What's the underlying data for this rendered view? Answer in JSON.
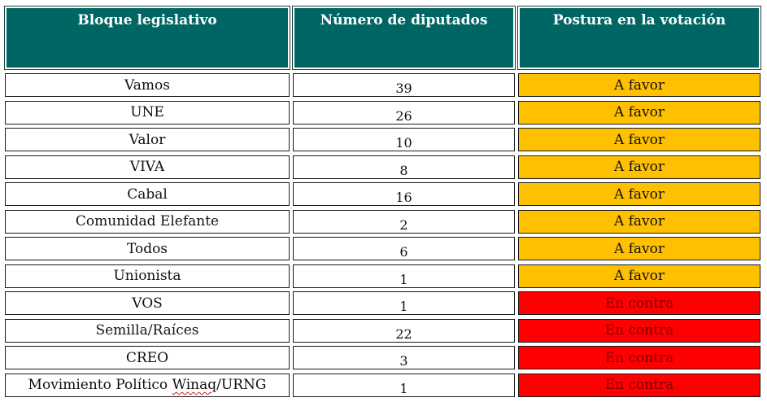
{
  "table": {
    "headers": [
      "Bloque legislativo",
      "Número de diputados",
      "Postura en la votación"
    ],
    "rows": [
      {
        "bloque": "Vamos",
        "diputados": "39",
        "postura": "A favor"
      },
      {
        "bloque": "UNE",
        "diputados": "26",
        "postura": "A favor"
      },
      {
        "bloque": "Valor",
        "diputados": "10",
        "postura": "A favor"
      },
      {
        "bloque": "VIVA",
        "diputados": "8",
        "postura": "A favor"
      },
      {
        "bloque": "Cabal",
        "diputados": "16",
        "postura": "A favor"
      },
      {
        "bloque": "Comunidad Elefante",
        "diputados": "2",
        "postura": "A favor"
      },
      {
        "bloque": "Todos",
        "diputados": "6",
        "postura": "A favor"
      },
      {
        "bloque": "Unionista",
        "diputados": "1",
        "postura": "A favor"
      },
      {
        "bloque": "VOS",
        "diputados": "1",
        "postura": "En contra"
      },
      {
        "bloque": "Semilla/Raíces",
        "diputados": "22",
        "postura": "En contra"
      },
      {
        "bloque": "CREO",
        "diputados": "3",
        "postura": "En contra"
      },
      {
        "bloque": "Movimiento Político Winaq/URNG",
        "diputados": "1",
        "postura": "En contra"
      }
    ]
  },
  "colors": {
    "header": "#006664",
    "a_favor": "#ffc000",
    "en_contra": "#ff0000"
  }
}
